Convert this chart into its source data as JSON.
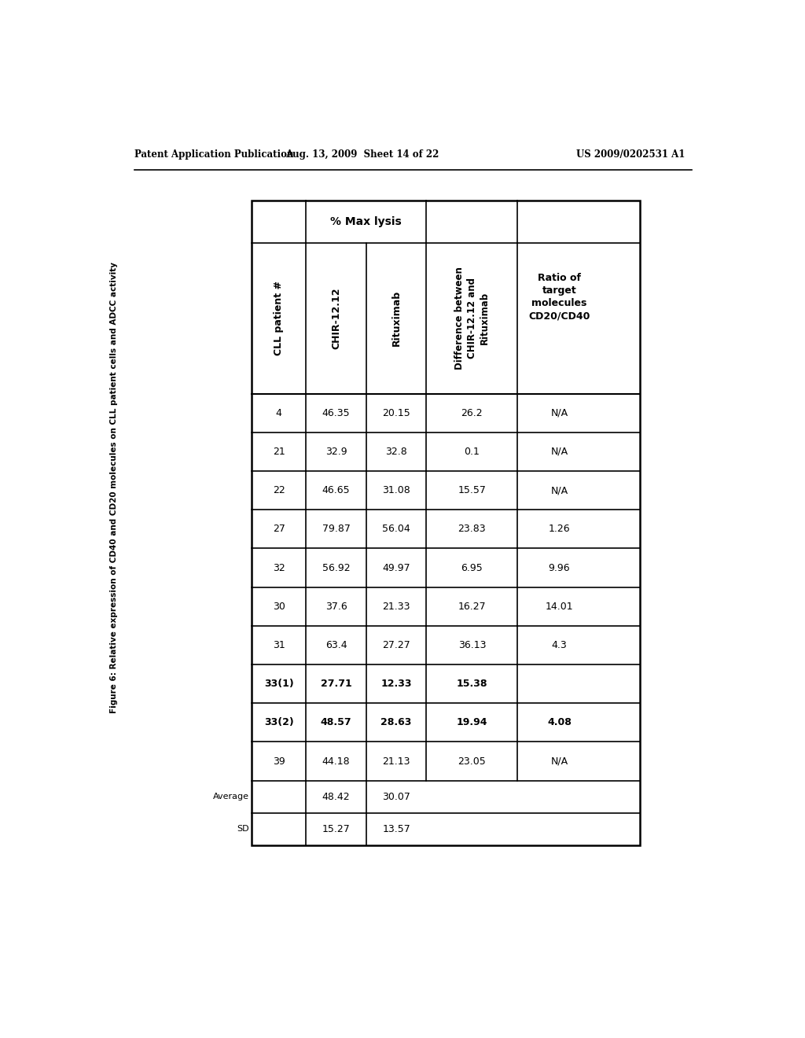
{
  "header_text_left": "Patent Application Publication",
  "header_text_mid": "Aug. 13, 2009  Sheet 14 of 22",
  "header_text_right": "US 2009/0202531 A1",
  "figure_caption": "Figure 6: Relative expression of CD40 and CD20 molecules on CLL patient cells and ADCC activity",
  "rows": [
    [
      "4",
      "46.35",
      "20.15",
      "26.2",
      "N/A"
    ],
    [
      "21",
      "32.9",
      "32.8",
      "0.1",
      "N/A"
    ],
    [
      "22",
      "46.65",
      "31.08",
      "15.57",
      "N/A"
    ],
    [
      "27",
      "79.87",
      "56.04",
      "23.83",
      "1.26"
    ],
    [
      "32",
      "56.92",
      "49.97",
      "6.95",
      "9.96"
    ],
    [
      "30",
      "37.6",
      "21.33",
      "16.27",
      "14.01"
    ],
    [
      "31",
      "63.4",
      "27.27",
      "36.13",
      "4.3"
    ],
    [
      "33(1)",
      "27.71",
      "12.33",
      "15.38",
      ""
    ],
    [
      "33(2)",
      "48.57",
      "28.63",
      "19.94",
      "4.08"
    ],
    [
      "39",
      "44.18",
      "21.13",
      "23.05",
      "N/A"
    ]
  ],
  "bold_rows": [
    7,
    8
  ],
  "avg_chir": "48.42",
  "avg_rit": "30.07",
  "sd_chir": "15.27",
  "sd_rit": "13.57",
  "background_color": "#ffffff"
}
